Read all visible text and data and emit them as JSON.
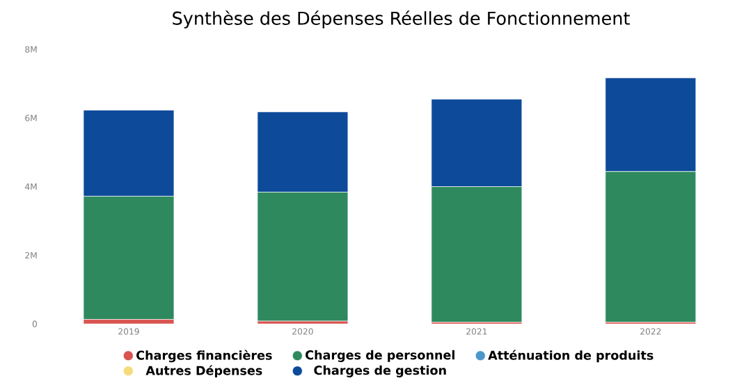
{
  "chart_data": {
    "type": "bar",
    "title": "Synthèse des Dépenses Réelles de Fonctionnement",
    "categories": [
      "2019",
      "2020",
      "2021",
      "2022"
    ],
    "stacked": true,
    "series": [
      {
        "name": "Charges financières",
        "color": "#d9534f",
        "values": [
          130000,
          80000,
          50000,
          50000
        ]
      },
      {
        "name": "Charges de personnel",
        "color": "#2e8a5e",
        "values": [
          3590000,
          3760000,
          3950000,
          4390000
        ]
      },
      {
        "name": "Atténuation de produits",
        "color": "#4a98c9",
        "values": [
          0,
          0,
          0,
          0
        ]
      },
      {
        "name": "Autres Dépenses",
        "color": "#f5dc7a",
        "values": [
          0,
          0,
          0,
          0
        ]
      },
      {
        "name": "Charges de gestion",
        "color": "#0d4a9a",
        "values": [
          2510000,
          2340000,
          2550000,
          2730000
        ]
      }
    ],
    "ylim": [
      0,
      8000000
    ],
    "yticks": [
      {
        "value": 0,
        "label": "0"
      },
      {
        "value": 2000000,
        "label": "2M"
      },
      {
        "value": 4000000,
        "label": "4M"
      },
      {
        "value": 6000000,
        "label": "6M"
      },
      {
        "value": 8000000,
        "label": "8M"
      }
    ],
    "grid": false,
    "legend": "bottom"
  }
}
